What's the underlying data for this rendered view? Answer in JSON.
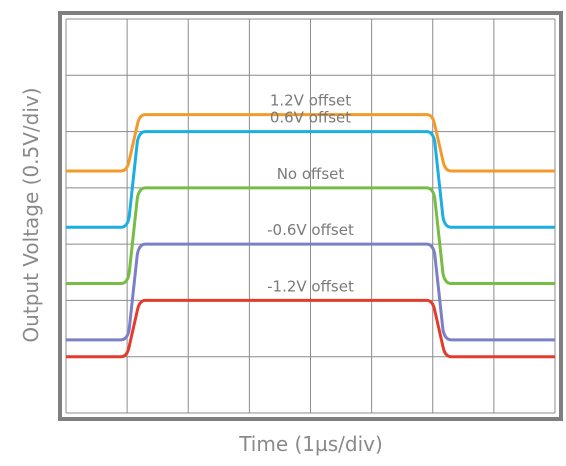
{
  "chart_data": {
    "type": "line",
    "xlabel": "Time (1µs/div)",
    "ylabel": "Output Voltage (0.5V/div)",
    "x_divisions": 8,
    "y_divisions": 7,
    "xlim": [
      0,
      8
    ],
    "ylim": [
      0,
      7
    ],
    "grid": true,
    "colors": {
      "frame": "#7f7f7f",
      "grid": "#8c8c8c"
    },
    "series": [
      {
        "name": "1.2V offset",
        "color": "#f39a2b",
        "low": 4.3,
        "high": 5.3,
        "rise_start": 1.0,
        "rise_end": 1.2,
        "fall_start": 6.0,
        "fall_end": 6.2
      },
      {
        "name": "0.6V offset",
        "color": "#1aaee3",
        "low": 3.3,
        "high": 5.0,
        "rise_start": 1.0,
        "rise_end": 1.2,
        "fall_start": 6.0,
        "fall_end": 6.2
      },
      {
        "name": "No offset",
        "color": "#76bd43",
        "low": 2.3,
        "high": 4.0,
        "rise_start": 1.0,
        "rise_end": 1.2,
        "fall_start": 6.0,
        "fall_end": 6.2
      },
      {
        "name": "-0.6V offset",
        "color": "#7b80c6",
        "low": 1.3,
        "high": 3.0,
        "rise_start": 1.0,
        "rise_end": 1.2,
        "fall_start": 6.0,
        "fall_end": 6.2
      },
      {
        "name": "-1.2V offset",
        "color": "#e53b2c",
        "low": 1.0,
        "high": 2.0,
        "rise_start": 1.0,
        "rise_end": 1.2,
        "fall_start": 6.0,
        "fall_end": 6.2
      }
    ]
  }
}
